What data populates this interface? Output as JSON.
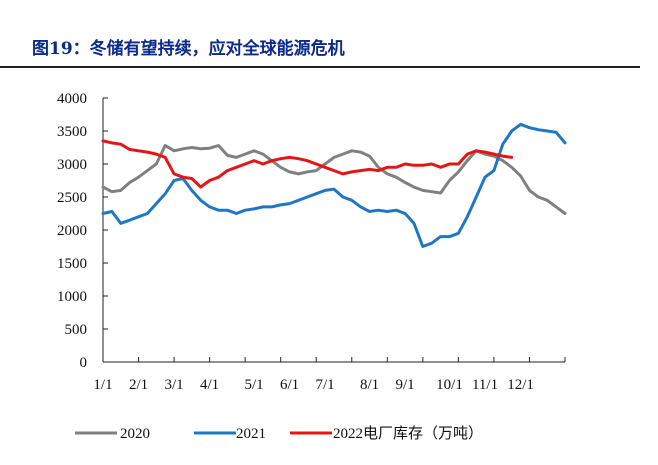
{
  "title": "图19：冬储有望持续，应对全球能源危机",
  "colors": {
    "s2020": "#808080",
    "s2021": "#1f77c4",
    "s2022": "#e51515",
    "title": "#0b2a8a"
  },
  "chart_data": {
    "type": "line",
    "title": "图19：冬储有望持续，应对全球能源危机",
    "xlabel": "",
    "ylabel": "",
    "x_unit": "week_of_year",
    "xlim": [
      1,
      53
    ],
    "ylim": [
      0,
      4000
    ],
    "y_ticks": [
      0,
      500,
      1000,
      1500,
      2000,
      2500,
      3000,
      3500,
      4000
    ],
    "x_tick_labels": [
      "1/1",
      "2/1",
      "3/1",
      "4/1",
      "5/1",
      "6/1",
      "7/1",
      "8/1",
      "9/1",
      "10/1",
      "11/1",
      "12/1"
    ],
    "x_tick_positions": [
      1,
      5,
      9,
      13,
      18,
      22,
      26,
      31,
      35,
      40,
      44,
      48
    ],
    "grid": false,
    "legend_position": "bottom",
    "series": [
      {
        "name": "2020",
        "color": "#808080",
        "x": [
          1,
          2,
          3,
          4,
          5,
          6,
          7,
          8,
          9,
          10,
          11,
          12,
          13,
          14,
          15,
          16,
          17,
          18,
          19,
          20,
          21,
          22,
          23,
          24,
          25,
          26,
          27,
          28,
          29,
          30,
          31,
          32,
          33,
          34,
          35,
          36,
          37,
          38,
          39,
          40,
          41,
          42,
          43,
          44,
          45,
          46,
          47,
          48,
          49,
          50,
          51,
          52,
          53
        ],
        "y": [
          2650,
          2580,
          2600,
          2720,
          2800,
          2900,
          3000,
          3280,
          3200,
          3230,
          3250,
          3230,
          3240,
          3280,
          3130,
          3100,
          3150,
          3200,
          3150,
          3050,
          2950,
          2880,
          2850,
          2880,
          2900,
          3000,
          3100,
          3150,
          3200,
          3180,
          3120,
          2950,
          2850,
          2800,
          2720,
          2650,
          2600,
          2580,
          2560,
          2750,
          2880,
          3050,
          3200,
          3150,
          3120,
          3050,
          2950,
          2820,
          2600,
          2500,
          2450,
          2350,
          2250
        ]
      },
      {
        "name": "2021",
        "color": "#1f77c4",
        "x": [
          1,
          2,
          3,
          4,
          5,
          6,
          7,
          8,
          9,
          10,
          11,
          12,
          13,
          14,
          15,
          16,
          17,
          18,
          19,
          20,
          21,
          22,
          23,
          24,
          25,
          26,
          27,
          28,
          29,
          30,
          31,
          32,
          33,
          34,
          35,
          36,
          37,
          38,
          39,
          40,
          41,
          42,
          43,
          44,
          45,
          46,
          47,
          48,
          49,
          50,
          51,
          52,
          53
        ],
        "y": [
          2250,
          2280,
          2100,
          2150,
          2200,
          2250,
          2400,
          2550,
          2750,
          2780,
          2600,
          2450,
          2350,
          2300,
          2300,
          2250,
          2300,
          2320,
          2350,
          2350,
          2380,
          2400,
          2450,
          2500,
          2550,
          2600,
          2620,
          2500,
          2450,
          2350,
          2280,
          2300,
          2280,
          2300,
          2250,
          2100,
          1750,
          1800,
          1900,
          1900,
          1950,
          2200,
          2500,
          2800,
          2900,
          3300,
          3500,
          3600,
          3550,
          3520,
          3500,
          3480,
          3320
        ]
      },
      {
        "name": "2022电厂库存（万吨）",
        "color": "#e51515",
        "x": [
          1,
          2,
          3,
          4,
          5,
          6,
          7,
          8,
          9,
          10,
          11,
          12,
          13,
          14,
          15,
          16,
          17,
          18,
          19,
          20,
          21,
          22,
          23,
          24,
          25,
          26,
          27,
          28,
          29,
          30,
          31,
          32,
          33,
          34,
          35,
          36,
          37,
          38,
          39,
          40,
          41,
          42,
          43,
          44,
          45,
          46,
          47
        ],
        "y": [
          3350,
          3320,
          3300,
          3220,
          3200,
          3180,
          3150,
          3100,
          2850,
          2800,
          2780,
          2650,
          2750,
          2800,
          2900,
          2950,
          3000,
          3050,
          3000,
          3050,
          3080,
          3100,
          3080,
          3050,
          3000,
          2950,
          2900,
          2850,
          2880,
          2900,
          2920,
          2900,
          2950,
          2950,
          3000,
          2980,
          2980,
          3000,
          2950,
          3000,
          3000,
          3150,
          3200,
          3180,
          3150,
          3120,
          3100
        ]
      }
    ]
  }
}
